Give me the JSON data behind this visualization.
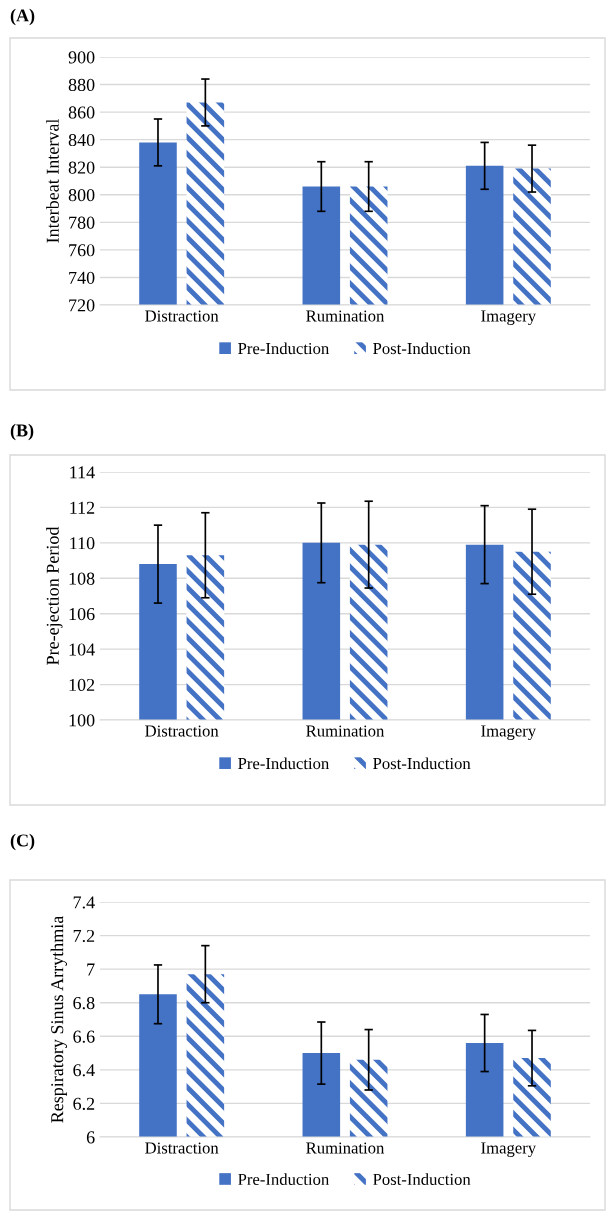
{
  "chart_data": [
    {
      "type": "bar",
      "title": "(A)",
      "ylabel": "Interbeat Interval",
      "categories": [
        "Distraction",
        "Rumination",
        "Imagery"
      ],
      "ylim": [
        720,
        900
      ],
      "yticks": [
        720,
        740,
        760,
        780,
        800,
        820,
        840,
        860,
        880,
        900
      ],
      "grid": "y",
      "legend": "bottom",
      "series": [
        {
          "name": "Pre-Induction",
          "color": "#4472c4",
          "values": [
            838,
            806,
            821
          ],
          "errors": [
            17,
            18,
            17
          ]
        },
        {
          "name": "Post-Induction",
          "color": "#4472c4",
          "values": [
            867,
            806,
            819
          ],
          "errors": [
            17,
            18,
            17
          ]
        }
      ]
    },
    {
      "type": "bar",
      "title": "(B)",
      "ylabel": "Pre-ejection Period",
      "categories": [
        "Distraction",
        "Rumination",
        "Imagery"
      ],
      "ylim": [
        100,
        114
      ],
      "yticks": [
        100,
        102,
        104,
        106,
        108,
        110,
        112,
        114
      ],
      "grid": "y",
      "legend": "bottom",
      "series": [
        {
          "name": "Pre-Induction",
          "color": "#4472c4",
          "values": [
            108.8,
            110.0,
            109.9
          ],
          "errors": [
            2.2,
            2.25,
            2.2
          ]
        },
        {
          "name": "Post-Induction",
          "color": "#4472c4",
          "values": [
            109.3,
            109.9,
            109.5
          ],
          "errors": [
            2.4,
            2.45,
            2.4
          ]
        }
      ]
    },
    {
      "type": "bar",
      "title": "(C)",
      "ylabel": "Respiratory Sinus Arrythmia",
      "categories": [
        "Distraction",
        "Rumination",
        "Imagery"
      ],
      "ylim": [
        6,
        7.4
      ],
      "yticks": [
        6,
        6.2,
        6.4,
        6.6,
        6.8,
        7,
        7.2,
        7.4
      ],
      "grid": "y",
      "legend": "bottom",
      "series": [
        {
          "name": "Pre-Induction",
          "color": "#4472c4",
          "values": [
            6.85,
            6.5,
            6.56
          ],
          "errors": [
            0.175,
            0.185,
            0.17
          ]
        },
        {
          "name": "Post-Induction",
          "color": "#4472c4",
          "values": [
            6.97,
            6.46,
            6.47
          ],
          "errors": [
            0.17,
            0.18,
            0.165
          ]
        }
      ]
    }
  ]
}
